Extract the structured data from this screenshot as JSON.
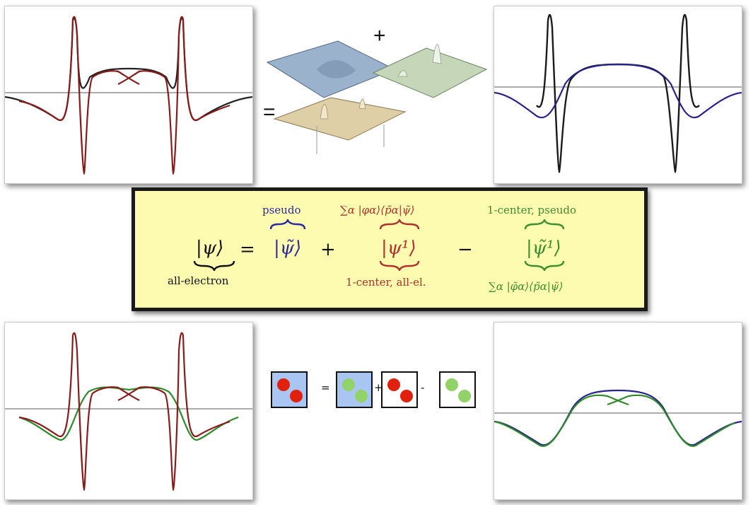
{
  "equation": {
    "lhs": "|ψ⟩",
    "lhs_label": "all-electron",
    "eq_sign": "=",
    "term1": "|ψ̃⟩",
    "term1_label": "pseudo",
    "plus": "+",
    "term2": "|ψ¹⟩",
    "term2_top": "∑α |φα⟩⟨p̃α|ψ̃⟩",
    "term2_bottom": "1-center, all-el.",
    "minus": "−",
    "term3": "|ψ̃¹⟩",
    "term3_top": "1-center, pseudo",
    "term3_bottom": "∑α |φ̃α⟩⟨p̃α|ψ̃⟩"
  },
  "surfaces": {
    "plus": "+",
    "equals": "="
  },
  "mini_equation": {
    "equals": "=",
    "plus": "+",
    "minus": "-"
  },
  "colors": {
    "all_electron": "#7b1a1a",
    "pseudo": "#2b2a8f",
    "one_center_ae": "#b0302b",
    "one_center_ps": "#3c8d2f",
    "box_fill": "#fdfbb0"
  }
}
